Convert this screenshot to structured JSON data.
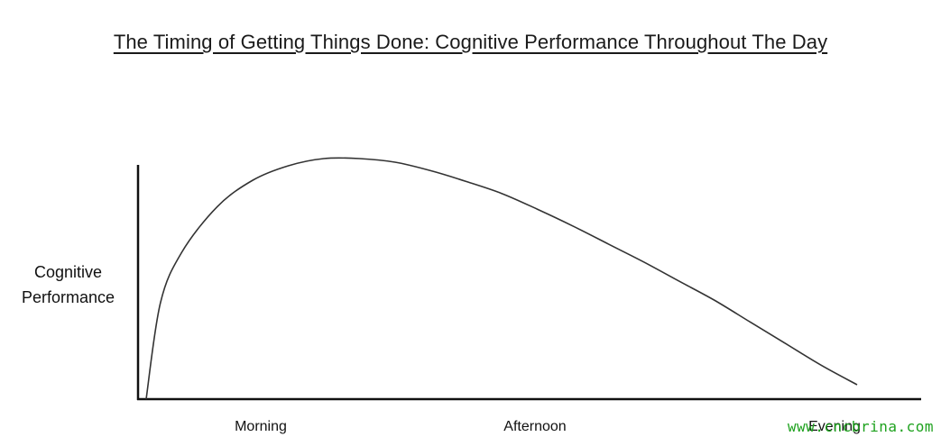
{
  "chart_data": {
    "type": "line",
    "title": "The Timing of Getting Things Done: Cognitive Performance Throughout The Day",
    "ylabel_lines": [
      "Cognitive",
      "Performance"
    ],
    "xlabel": "",
    "x_tick_labels": [
      "Morning",
      "Afternoon",
      "Evening"
    ],
    "x": [
      0.0,
      0.02,
      0.05,
      0.1,
      0.15,
      0.2,
      0.25,
      0.3,
      0.35,
      0.4,
      0.45,
      0.5,
      0.55,
      0.6,
      0.65,
      0.7,
      0.75,
      0.8,
      0.85,
      0.9,
      0.95,
      1.0
    ],
    "y": [
      0.0,
      0.4,
      0.61,
      0.8,
      0.91,
      0.97,
      1.0,
      1.0,
      0.985,
      0.95,
      0.905,
      0.855,
      0.79,
      0.72,
      0.645,
      0.57,
      0.49,
      0.41,
      0.32,
      0.23,
      0.14,
      0.06
    ],
    "axes_visible": [
      "left",
      "bottom"
    ],
    "ticks_visible": false,
    "grid": false,
    "line_color": "#333333",
    "axis_color": "#111111"
  },
  "watermark": {
    "text": "www.cncbrina.com",
    "color": "#1fa21f"
  }
}
